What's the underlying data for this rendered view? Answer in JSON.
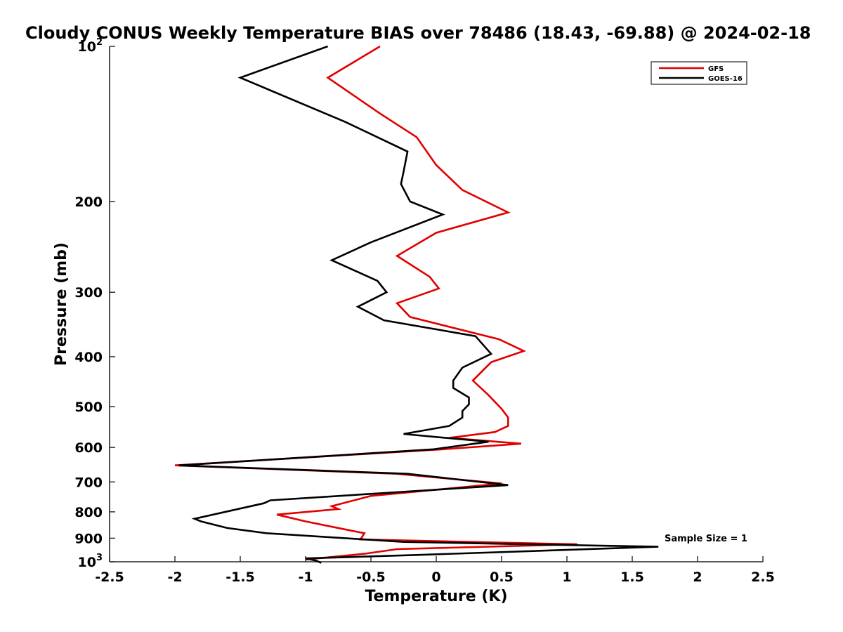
{
  "chart_data": {
    "type": "line",
    "title": "Cloudy CONUS Weekly Temperature BIAS over 78486 (18.43, -69.88) @ 2024-02-18",
    "xlabel": "Temperature (K)",
    "ylabel": "Pressure (mb)",
    "xlim": [
      -2.5,
      2.5
    ],
    "ylim": [
      100,
      1000
    ],
    "y_scale": "log",
    "y_reversed": true,
    "grid": false,
    "legend_position": "top-right",
    "x_ticks": [
      {
        "value": -2.5,
        "label": "-2.5"
      },
      {
        "value": -2,
        "label": "-2"
      },
      {
        "value": -1.5,
        "label": "-1.5"
      },
      {
        "value": -1,
        "label": "-1"
      },
      {
        "value": -0.5,
        "label": "-0.5"
      },
      {
        "value": 0,
        "label": "0"
      },
      {
        "value": 0.5,
        "label": "0.5"
      },
      {
        "value": 1,
        "label": "1"
      },
      {
        "value": 1.5,
        "label": "1.5"
      },
      {
        "value": 2,
        "label": "2"
      },
      {
        "value": 2.5,
        "label": "2.5"
      }
    ],
    "y_ticks": [
      {
        "value": 100,
        "base": "10",
        "exp": "2"
      },
      {
        "value": 200,
        "label": "200"
      },
      {
        "value": 300,
        "label": "300"
      },
      {
        "value": 400,
        "label": "400"
      },
      {
        "value": 500,
        "label": "500"
      },
      {
        "value": 600,
        "label": "600"
      },
      {
        "value": 700,
        "label": "700"
      },
      {
        "value": 800,
        "label": "800"
      },
      {
        "value": 900,
        "label": "900"
      },
      {
        "value": 1000,
        "base": "10",
        "exp": "3"
      }
    ],
    "annotation": "Sample Size = 1",
    "series": [
      {
        "name": "GFS",
        "color": "#e00000",
        "points": [
          [
            -0.43,
            100
          ],
          [
            -0.83,
            115
          ],
          [
            -0.43,
            135
          ],
          [
            -0.15,
            150
          ],
          [
            0,
            170
          ],
          [
            0.2,
            190
          ],
          [
            0.55,
            210
          ],
          [
            0,
            230
          ],
          [
            -0.3,
            255
          ],
          [
            -0.05,
            280
          ],
          [
            0.02,
            295
          ],
          [
            -0.3,
            315
          ],
          [
            -0.2,
            335
          ],
          [
            0.48,
            370
          ],
          [
            0.67,
            390
          ],
          [
            0.42,
            410
          ],
          [
            0.28,
            445
          ],
          [
            0.4,
            475
          ],
          [
            0.5,
            505
          ],
          [
            0.55,
            525
          ],
          [
            0.55,
            545
          ],
          [
            0.45,
            560
          ],
          [
            0.1,
            575
          ],
          [
            0.65,
            590
          ],
          [
            0.05,
            605
          ],
          [
            -2.0,
            650
          ],
          [
            -0.3,
            675
          ],
          [
            0.5,
            705
          ],
          [
            -0.5,
            745
          ],
          [
            -0.8,
            780
          ],
          [
            -0.75,
            790
          ],
          [
            -1.22,
            810
          ],
          [
            -1.0,
            835
          ],
          [
            -0.7,
            865
          ],
          [
            -0.55,
            880
          ],
          [
            -0.58,
            905
          ],
          [
            1.08,
            925
          ],
          [
            -0.3,
            945
          ],
          [
            -0.55,
            965
          ],
          [
            -1.0,
            990
          ]
        ]
      },
      {
        "name": "GOES-16",
        "color": "#000000",
        "points": [
          [
            -0.83,
            100
          ],
          [
            -1.5,
            115
          ],
          [
            -0.7,
            140
          ],
          [
            -0.22,
            160
          ],
          [
            -0.25,
            175
          ],
          [
            -0.27,
            185
          ],
          [
            -0.2,
            200
          ],
          [
            0.05,
            212
          ],
          [
            -0.5,
            240
          ],
          [
            -0.8,
            260
          ],
          [
            -0.45,
            285
          ],
          [
            -0.38,
            300
          ],
          [
            -0.6,
            320
          ],
          [
            -0.4,
            340
          ],
          [
            0.3,
            365
          ],
          [
            0.42,
            395
          ],
          [
            0.2,
            420
          ],
          [
            0.13,
            445
          ],
          [
            0.13,
            460
          ],
          [
            0.25,
            480
          ],
          [
            0.25,
            495
          ],
          [
            0.2,
            510
          ],
          [
            0.2,
            525
          ],
          [
            0.1,
            545
          ],
          [
            -0.25,
            565
          ],
          [
            0.4,
            585
          ],
          [
            -0.02,
            605
          ],
          [
            -1.97,
            650
          ],
          [
            -0.22,
            675
          ],
          [
            0.55,
            710
          ],
          [
            -1.27,
            760
          ],
          [
            -1.32,
            770
          ],
          [
            -1.85,
            825
          ],
          [
            -1.8,
            835
          ],
          [
            -1.6,
            860
          ],
          [
            -1.3,
            880
          ],
          [
            -0.25,
            915
          ],
          [
            1.7,
            935
          ],
          [
            -0.15,
            970
          ],
          [
            -1.0,
            985
          ],
          [
            -0.92,
            995
          ],
          [
            -0.88,
            1005
          ]
        ]
      }
    ]
  }
}
